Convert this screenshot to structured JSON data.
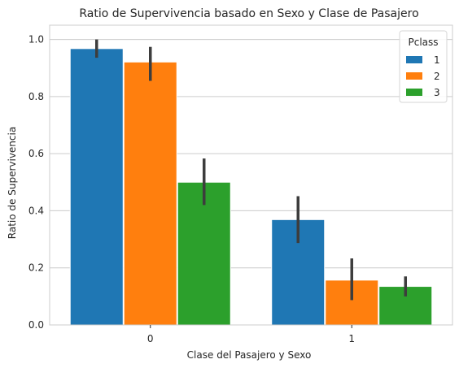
{
  "chart_data": {
    "type": "bar",
    "title": "Ratio de Supervivencia basado en Sexo y Clase de Pasajero",
    "xlabel": "Clase del Pasajero y Sexo",
    "ylabel": "Ratio de Supervivencia",
    "categories": [
      "0",
      "1"
    ],
    "ylim": [
      0,
      1.05
    ],
    "yticks": [
      0.0,
      0.2,
      0.4,
      0.6,
      0.8,
      1.0
    ],
    "ytick_labels": [
      "0.0",
      "0.2",
      "0.4",
      "0.6",
      "0.8",
      "1.0"
    ],
    "grid": "horizontal",
    "legend": {
      "title": "Pclass",
      "placement": "top-right"
    },
    "series": [
      {
        "name": "1",
        "color": "#1f77b4",
        "values": [
          0.968,
          0.369
        ],
        "ci_low": [
          0.936,
          0.287
        ],
        "ci_high": [
          1.0,
          0.451
        ]
      },
      {
        "name": "2",
        "color": "#ff7f0e",
        "values": [
          0.921,
          0.157
        ],
        "ci_low": [
          0.855,
          0.087
        ],
        "ci_high": [
          0.974,
          0.233
        ]
      },
      {
        "name": "3",
        "color": "#2ca02c",
        "values": [
          0.5,
          0.135
        ],
        "ci_low": [
          0.42,
          0.1
        ],
        "ci_high": [
          0.583,
          0.17
        ]
      }
    ]
  }
}
